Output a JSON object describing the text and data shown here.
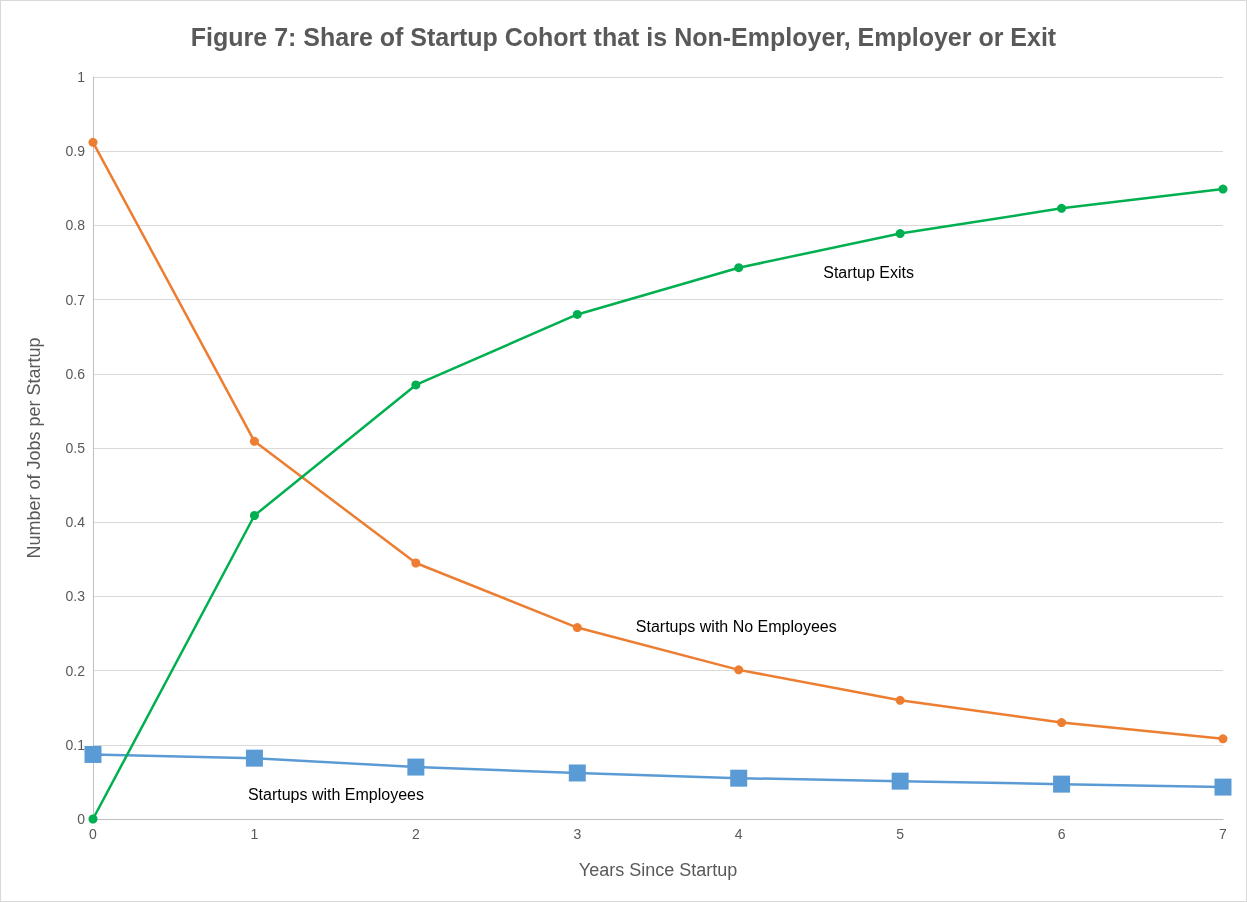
{
  "chart_data": {
    "type": "line",
    "title": "Figure 7: Share of Startup Cohort that is Non-Employer, Employer or Exit",
    "xlabel": "Years Since Startup",
    "ylabel": "Number of Jobs per Startup",
    "x": [
      0,
      1,
      2,
      3,
      4,
      5,
      6,
      7
    ],
    "xlim": [
      0,
      7
    ],
    "xticks": [
      0,
      1,
      2,
      3,
      4,
      5,
      6,
      7
    ],
    "ylim": [
      0,
      1
    ],
    "yticks": [
      0,
      0.1,
      0.2,
      0.3,
      0.4,
      0.5,
      0.6,
      0.7,
      0.8,
      0.9,
      1
    ],
    "grid": "y",
    "series": [
      {
        "name": "Startups with Employees",
        "color": "#5b9bd5",
        "marker": "square",
        "values": [
          0.087,
          0.082,
          0.07,
          0.062,
          0.055,
          0.051,
          0.047,
          0.043
        ]
      },
      {
        "name": "Startups with No Employees",
        "color": "#ed7d31",
        "marker": "circle",
        "values": [
          0.912,
          0.509,
          0.345,
          0.258,
          0.201,
          0.16,
          0.13,
          0.108
        ]
      },
      {
        "name": "Startup Exits",
        "color": "#00b050",
        "marker": "circle",
        "values": [
          0,
          0.409,
          0.585,
          0.68,
          0.743,
          0.789,
          0.823,
          0.849
        ]
      }
    ]
  }
}
